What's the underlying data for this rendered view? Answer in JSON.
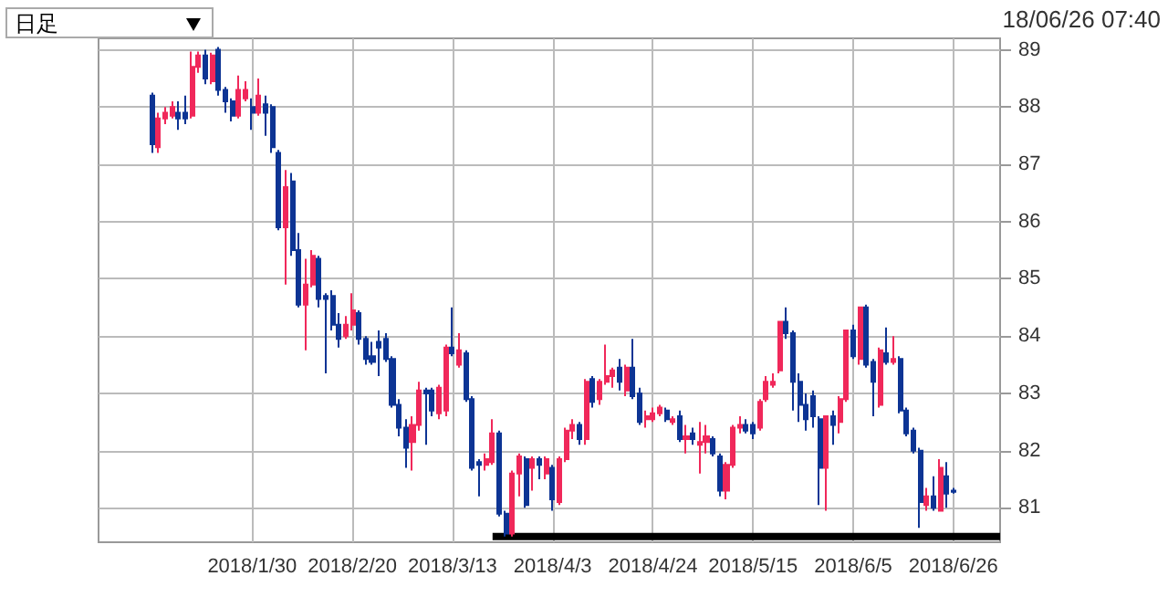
{
  "chart_data": {
    "type": "candlestick",
    "annotations": [
      "日足",
      "18/06/26 07:40"
    ],
    "categories": [
      null,
      null,
      null,
      null,
      null,
      null,
      null,
      null,
      null,
      null,
      null,
      null,
      null,
      null,
      null,
      null,
      null,
      null,
      null,
      null,
      null,
      null,
      null,
      "2018/1/30",
      null,
      null,
      null,
      null,
      null,
      null,
      null,
      null,
      null,
      null,
      null,
      null,
      null,
      null,
      "2018/2/20",
      null,
      null,
      null,
      null,
      null,
      null,
      null,
      null,
      null,
      null,
      null,
      null,
      null,
      null,
      "2018/3/13",
      null,
      null,
      null,
      null,
      null,
      null,
      null,
      null,
      null,
      null,
      null,
      null,
      null,
      null,
      "2018/4/3",
      null,
      null,
      null,
      null,
      null,
      null,
      null,
      null,
      null,
      null,
      null,
      null,
      null,
      null,
      "2018/4/24",
      null,
      null,
      null,
      null,
      null,
      null,
      null,
      null,
      null,
      null,
      null,
      null,
      null,
      null,
      "2018/5/15",
      null,
      null,
      null,
      null,
      null,
      null,
      null,
      null,
      null,
      null,
      null,
      null,
      null,
      null,
      "2018/6/5",
      null,
      null,
      null,
      null,
      null,
      null,
      null,
      null,
      null,
      null,
      null,
      null,
      null,
      null,
      "2018/6/26",
      null,
      null,
      null,
      null,
      null,
      null,
      null
    ],
    "ohlc": [
      null,
      null,
      null,
      null,
      null,
      null,
      null,
      null,
      [
        88.2,
        88.25,
        87.2,
        87.35
      ],
      [
        87.3,
        87.9,
        87.2,
        87.8
      ],
      [
        87.8,
        88.0,
        87.7,
        87.9
      ],
      [
        87.85,
        88.1,
        87.8,
        88.0
      ],
      [
        87.9,
        88.1,
        87.6,
        87.8
      ],
      [
        87.9,
        88.2,
        87.7,
        87.8
      ],
      [
        87.85,
        88.97,
        87.8,
        88.7
      ],
      [
        88.7,
        88.97,
        88.6,
        88.9
      ],
      [
        88.9,
        89.0,
        88.4,
        88.5
      ],
      [
        88.45,
        88.95,
        88.4,
        88.9
      ],
      [
        89.0,
        89.05,
        88.2,
        88.3
      ],
      [
        88.3,
        88.35,
        87.9,
        88.1
      ],
      [
        88.1,
        88.15,
        87.75,
        87.85
      ],
      [
        87.85,
        88.55,
        87.8,
        88.3
      ],
      [
        88.15,
        88.45,
        88.1,
        88.3
      ],
      [
        88.0,
        88.15,
        87.6,
        87.9
      ],
      [
        87.9,
        88.5,
        87.85,
        88.2
      ],
      [
        88.05,
        88.2,
        87.5,
        87.9
      ],
      [
        88.0,
        88.05,
        87.2,
        87.3
      ],
      [
        87.2,
        87.25,
        85.85,
        85.9
      ],
      [
        85.9,
        86.9,
        84.9,
        86.6
      ],
      [
        86.7,
        86.85,
        85.4,
        85.5
      ],
      [
        85.5,
        85.8,
        84.5,
        84.55
      ],
      [
        84.55,
        85.35,
        83.75,
        84.9
      ],
      [
        84.9,
        85.5,
        84.85,
        85.4
      ],
      [
        85.35,
        85.4,
        84.5,
        84.65
      ],
      [
        84.7,
        84.75,
        83.35,
        84.65
      ],
      [
        84.7,
        84.8,
        84.1,
        84.2
      ],
      [
        84.2,
        84.4,
        83.8,
        83.95
      ],
      [
        84.0,
        84.35,
        83.95,
        84.2
      ],
      [
        84.2,
        84.75,
        84.1,
        84.45
      ],
      [
        84.4,
        84.45,
        83.85,
        83.95
      ],
      [
        83.95,
        84.0,
        83.5,
        83.6
      ],
      [
        83.65,
        83.9,
        83.5,
        83.55
      ],
      [
        83.9,
        84.1,
        83.3,
        83.8
      ],
      [
        83.95,
        84.05,
        83.55,
        83.6
      ],
      [
        83.6,
        83.65,
        82.75,
        82.8
      ],
      [
        82.8,
        82.9,
        82.25,
        82.4
      ],
      [
        82.4,
        82.55,
        81.7,
        82.05
      ],
      [
        82.15,
        82.6,
        81.65,
        82.45
      ],
      [
        82.45,
        83.2,
        82.35,
        83.05
      ],
      [
        83.05,
        83.1,
        82.1,
        83.0
      ],
      [
        83.05,
        83.1,
        82.6,
        82.7
      ],
      [
        82.65,
        83.15,
        82.55,
        83.1
      ],
      [
        82.7,
        83.85,
        82.6,
        83.8
      ],
      [
        83.8,
        84.5,
        83.65,
        83.7
      ],
      [
        83.5,
        84.05,
        83.45,
        83.75
      ],
      [
        83.7,
        83.75,
        82.85,
        82.9
      ],
      [
        82.9,
        82.95,
        81.65,
        81.7
      ],
      [
        81.8,
        81.85,
        81.2,
        81.75
      ],
      [
        81.75,
        81.95,
        81.65,
        81.85
      ],
      [
        81.8,
        82.55,
        81.75,
        82.3
      ],
      [
        82.3,
        82.35,
        80.85,
        80.9
      ],
      [
        80.9,
        80.95,
        80.5,
        80.55
      ],
      [
        80.55,
        81.65,
        80.5,
        81.6
      ],
      [
        81.6,
        81.95,
        81.2,
        81.9
      ],
      [
        81.85,
        81.9,
        81.0,
        81.05
      ],
      [
        81.7,
        81.9,
        81.3,
        81.85
      ],
      [
        81.85,
        81.9,
        81.5,
        81.75
      ],
      [
        81.6,
        81.9,
        81.5,
        81.85
      ],
      [
        81.7,
        81.75,
        80.95,
        81.15
      ],
      [
        81.1,
        81.9,
        81.05,
        81.85
      ],
      [
        81.85,
        82.4,
        81.8,
        82.35
      ],
      [
        82.35,
        82.55,
        82.2,
        82.45
      ],
      [
        82.45,
        82.5,
        82.1,
        82.2
      ],
      [
        82.2,
        83.25,
        82.1,
        83.2
      ],
      [
        83.25,
        83.3,
        82.75,
        82.85
      ],
      [
        82.9,
        83.25,
        82.8,
        83.2
      ],
      [
        83.2,
        83.85,
        83.15,
        83.3
      ],
      [
        83.3,
        83.45,
        83.1,
        83.4
      ],
      [
        83.45,
        83.6,
        83.05,
        83.2
      ],
      [
        83.05,
        83.5,
        82.95,
        83.45
      ],
      [
        83.45,
        83.95,
        82.9,
        82.95
      ],
      [
        83.0,
        83.1,
        82.45,
        82.5
      ],
      [
        82.55,
        82.7,
        82.4,
        82.6
      ],
      [
        82.55,
        82.75,
        82.5,
        82.65
      ],
      [
        82.65,
        82.8,
        82.6,
        82.75
      ],
      [
        82.7,
        82.75,
        82.5,
        82.55
      ],
      [
        82.5,
        82.6,
        82.45,
        82.55
      ],
      [
        82.6,
        82.7,
        82.15,
        82.2
      ],
      [
        82.2,
        82.45,
        81.95,
        82.25
      ],
      [
        82.3,
        82.4,
        82.1,
        82.2
      ],
      [
        82.1,
        82.5,
        81.6,
        82.15
      ],
      [
        82.15,
        82.45,
        81.95,
        82.25
      ],
      [
        82.2,
        82.25,
        81.9,
        81.95
      ],
      [
        81.9,
        81.95,
        81.2,
        81.3
      ],
      [
        81.3,
        81.8,
        81.15,
        81.75
      ],
      [
        81.75,
        82.45,
        81.7,
        82.4
      ],
      [
        82.4,
        82.6,
        82.3,
        82.45
      ],
      [
        82.45,
        82.55,
        82.3,
        82.35
      ],
      [
        82.45,
        82.5,
        82.2,
        82.3
      ],
      [
        82.4,
        82.9,
        82.35,
        82.85
      ],
      [
        82.9,
        83.3,
        82.85,
        83.2
      ],
      [
        83.15,
        83.35,
        83.1,
        83.2
      ],
      [
        83.4,
        84.25,
        83.35,
        84.25
      ],
      [
        84.25,
        84.5,
        83.95,
        84.05
      ],
      [
        84.05,
        84.1,
        82.7,
        83.2
      ],
      [
        83.2,
        83.35,
        82.5,
        82.8
      ],
      [
        82.8,
        83.0,
        82.35,
        82.55
      ],
      [
        82.95,
        83.05,
        82.4,
        82.6
      ],
      [
        82.55,
        82.6,
        81.05,
        81.7
      ],
      [
        81.7,
        82.6,
        80.95,
        82.6
      ],
      [
        82.6,
        82.7,
        82.1,
        82.45
      ],
      [
        82.5,
        82.95,
        82.3,
        82.9
      ],
      [
        82.9,
        84.1,
        82.85,
        84.1
      ],
      [
        84.1,
        84.2,
        83.6,
        83.65
      ],
      [
        83.6,
        84.5,
        83.5,
        84.5
      ],
      [
        84.5,
        84.55,
        83.45,
        83.5
      ],
      [
        83.55,
        83.6,
        82.6,
        83.2
      ],
      [
        82.8,
        83.8,
        82.75,
        83.75
      ],
      [
        83.7,
        84.15,
        83.5,
        83.55
      ],
      [
        83.55,
        84.0,
        83.5,
        83.6
      ],
      [
        83.6,
        83.65,
        82.65,
        82.7
      ],
      [
        82.7,
        82.75,
        82.25,
        82.3
      ],
      [
        82.35,
        82.4,
        81.95,
        82.0
      ],
      [
        82.0,
        82.05,
        80.65,
        81.1
      ],
      [
        81.05,
        81.35,
        80.95,
        81.2
      ],
      [
        81.2,
        81.55,
        80.95,
        81.0
      ],
      [
        80.95,
        81.85,
        80.95,
        81.7
      ],
      [
        81.55,
        81.8,
        81.0,
        81.25
      ],
      [
        81.3,
        81.35,
        81.25,
        81.28
      ],
      null,
      null,
      null,
      null,
      null,
      null,
      null
    ],
    "colors": [
      null,
      null,
      null,
      null,
      null,
      null,
      null,
      null,
      "#0d3494",
      "#f0285a",
      "#f0285a",
      "#f0285a",
      "#0d3494",
      "#0d3494",
      "#f0285a",
      "#f0285a",
      "#0d3494",
      "#f0285a",
      "#0d3494",
      "#0d3494",
      "#0d3494",
      "#f0285a",
      "#f0285a",
      "#0d3494",
      "#f0285a",
      "#0d3494",
      "#0d3494",
      "#0d3494",
      "#f0285a",
      "#0d3494",
      "#0d3494",
      "#f0285a",
      "#f0285a",
      "#0d3494",
      "#0d3494",
      "#0d3494",
      "#0d3494",
      "#f0285a",
      "#f0285a",
      "#0d3494",
      "#0d3494",
      "#0d3494",
      "#0d3494",
      "#0d3494",
      "#0d3494",
      "#0d3494",
      "#0d3494",
      "#f0285a",
      "#f0285a",
      "#0d3494",
      "#0d3494",
      "#f0285a",
      "#f0285a",
      "#0d3494",
      "#f0285a",
      "#0d3494",
      "#0d3494",
      "#0d3494",
      "#f0285a",
      "#f0285a",
      "#0d3494",
      "#0d3494",
      "#f0285a",
      "#f0285a",
      "#0d3494",
      "#f0285a",
      "#0d3494",
      "#f0285a",
      "#0d3494",
      "#f0285a",
      "#f0285a",
      "#f0285a",
      "#0d3494",
      "#f0285a",
      "#0d3494",
      "#f0285a",
      "#f0285a",
      "#f0285a",
      "#0d3494",
      "#f0285a",
      "#0d3494",
      "#0d3494",
      "#f0285a",
      "#f0285a",
      "#f0285a",
      "#0d3494",
      "#f0285a",
      "#0d3494",
      "#f0285a",
      "#0d3494",
      "#f0285a",
      "#f0285a",
      "#0d3494",
      "#0d3494",
      "#f0285a",
      "#f0285a",
      "#f0285a",
      "#0d3494",
      "#0d3494",
      "#f0285a",
      "#f0285a",
      "#f0285a",
      "#f0285a",
      "#0d3494",
      "#0d3494",
      "#0d3494",
      "#0d3494",
      "#0d3494",
      "#0d3494",
      "#f0285a",
      "#0d3494",
      "#f0285a",
      "#f0285a",
      "#0d3494",
      "#f0285a",
      "#0d3494",
      "#0d3494",
      "#f0285a",
      "#0d3494",
      "#f0285a",
      "#0d3494",
      "#0d3494",
      "#0d3494",
      "#0d3494",
      "#f0285a",
      "#0d3494",
      "#f0285a",
      "#0d3494",
      "#0d3494",
      null,
      null,
      null,
      null,
      null,
      null,
      null
    ],
    "series": [
      {
        "type": "line",
        "color": "#000000",
        "values": [
          null,
          null,
          null,
          null,
          null,
          null,
          null,
          null,
          null,
          null,
          null,
          null,
          null,
          null,
          null,
          null,
          null,
          null,
          null,
          null,
          null,
          null,
          null,
          null,
          null,
          null,
          null,
          null,
          null,
          null,
          null,
          null,
          null,
          null,
          null,
          null,
          null,
          null,
          null,
          null,
          null,
          null,
          null,
          null,
          null,
          null,
          null,
          null,
          null,
          null,
          null,
          null,
          null,
          null,
          null,
          null,
          null,
          null,
          null,
          80.5,
          80.5,
          80.5,
          80.5,
          80.5,
          80.5,
          80.5,
          80.5,
          80.5,
          80.5,
          80.5,
          80.5,
          80.5,
          80.5,
          80.5,
          80.5,
          80.5,
          80.5,
          80.5,
          80.5,
          80.5,
          80.5,
          80.5,
          80.5,
          80.5,
          80.5,
          80.5,
          80.5,
          80.5,
          80.5,
          80.5,
          80.5,
          80.5,
          80.5,
          80.5,
          80.5,
          80.5,
          80.5,
          80.5,
          80.5,
          80.5,
          80.5,
          80.5,
          80.5,
          80.5,
          80.5,
          80.5,
          80.5,
          80.5,
          80.5,
          80.5,
          80.5,
          80.5,
          80.5,
          80.5,
          80.5,
          80.5,
          80.5,
          80.5,
          80.5,
          80.5,
          80.5,
          80.5,
          80.5,
          80.5,
          80.5,
          80.5,
          80.5,
          80.5,
          80.5,
          80.5,
          80.5,
          80.5,
          80.5,
          80.5,
          80.5,
          80.5
        ]
      }
    ],
    "ylim": [
      80.4,
      89.2
    ],
    "yticks": [
      81,
      82,
      83,
      84,
      85,
      86,
      87,
      88,
      89
    ],
    "grid": true,
    "marker": "none"
  }
}
